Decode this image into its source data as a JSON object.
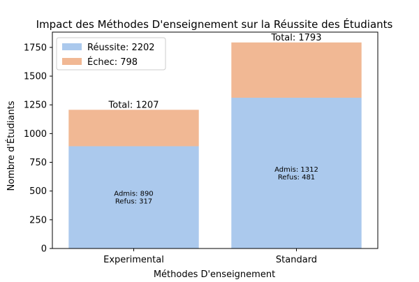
{
  "chart_data": {
    "type": "bar",
    "stacked": true,
    "title": "Impact des Méthodes D'enseignement sur la Réussite des Étudiants",
    "xlabel": "Méthodes D'enseignement",
    "ylabel": "Nombre d'Étudiants",
    "categories": [
      "Experimental",
      "Standard"
    ],
    "series": [
      {
        "name": "Réussite: 2202",
        "values": [
          890,
          1312
        ],
        "color": "#abc9ed"
      },
      {
        "name": "Échec: 798",
        "values": [
          317,
          481
        ],
        "color": "#f1b894"
      }
    ],
    "totals": [
      1207,
      1793
    ],
    "total_labels": [
      "Total: 1207",
      "Total: 1793"
    ],
    "inner_labels": [
      [
        "Admis: 890",
        "Refus: 317"
      ],
      [
        "Admis: 1312",
        "Refus: 481"
      ]
    ],
    "ylim": [
      0,
      1883
    ],
    "yticks": [
      0,
      250,
      500,
      750,
      1000,
      1250,
      1500,
      1750
    ],
    "legend_position": "upper-left",
    "grid": false
  }
}
